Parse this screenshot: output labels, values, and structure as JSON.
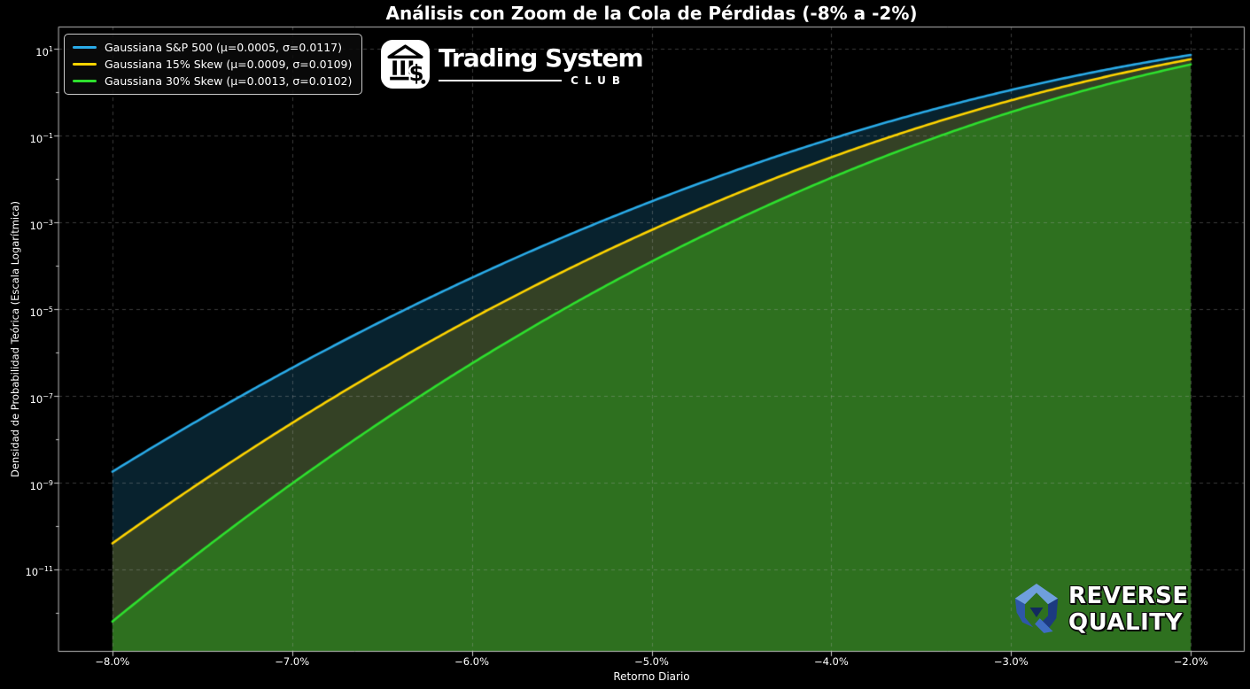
{
  "chart_data": {
    "type": "line",
    "title": "Análisis con Zoom de la Cola de Pérdidas (-8% a -2%)",
    "xlabel": "Retorno Diario",
    "ylabel": "Densidad de Probabilidad Teórica (Escala Logarítmica)",
    "background_color": "#000000",
    "legend_position": "upper left",
    "grid": {
      "style": "dashed",
      "color": "rgba(170,170,170,0.35)"
    },
    "spine_color": "#b9b9b9",
    "tick_color": "#cccccc",
    "x_axis": {
      "unit": "%",
      "ticks": [
        -8,
        -7,
        -6,
        -5,
        -4,
        -3,
        -2
      ],
      "tick_labels": [
        "−8.0%",
        "−7.0%",
        "−6.0%",
        "−5.0%",
        "−4.0%",
        "−3.0%",
        "−2.0%"
      ],
      "range_pct": [
        -8.3,
        -1.7
      ],
      "data_range_pct": [
        -8,
        -2
      ]
    },
    "y_axis": {
      "scale": "log",
      "tick_label_base": "10",
      "major_tick_exponents": [
        1,
        -1,
        -3,
        -5,
        -7,
        -9,
        -11
      ],
      "log_range": [
        1.52,
        -12.9
      ]
    },
    "sample_x_pct": [
      -8.0,
      -7.5,
      -7.0,
      -6.5,
      -6.0,
      -5.5,
      -5.0,
      -4.5,
      -4.0,
      -3.5,
      -3.0,
      -2.5,
      -2.0
    ],
    "series": [
      {
        "name": "Gaussiana S&P 500 (μ=0.0005, σ=0.0117)",
        "mu": 0.0005,
        "sigma": 0.0117,
        "color": "#2aabe8",
        "fill_color": "rgba(42,170,232,0.20)",
        "pdf_samples": [
          1.8e-09,
          3.1e-08,
          4.4e-07,
          5.3e-06,
          5.3e-05,
          0.00044,
          0.00307,
          0.0177,
          0.0853,
          0.342,
          1.14,
          3.17,
          7.35
        ]
      },
      {
        "name": "Gaussiana 15% Skew (μ=0.0009, σ=0.0109)",
        "mu": 0.0009,
        "sigma": 0.0109,
        "color": "#ffd400",
        "fill_color": "rgba(255,212,0,0.18)",
        "pdf_samples": [
          4e-11,
          1.1e-09,
          2.4e-08,
          4.2e-07,
          6.1e-06,
          7e-05,
          0.00067,
          0.00514,
          0.032,
          0.161,
          0.656,
          2.17,
          5.81
        ]
      },
      {
        "name": "Gaussiana 30% Skew (μ=0.0013, σ=0.0102)",
        "mu": 0.0013,
        "sigma": 0.0102,
        "color": "#2ee02e",
        "fill_color": "rgba(40,160,25,0.50)",
        "pdf_samples": [
          6.2e-13,
          2.7e-11,
          9.5e-10,
          2.6e-08,
          5.6e-07,
          9.4e-06,
          0.000126,
          0.0013,
          0.0107,
          0.0693,
          0.352,
          1.4,
          4.41
        ]
      }
    ]
  },
  "branding": {
    "trading_system_club": {
      "name": "Trading System",
      "club": "CLUB"
    },
    "watermark": {
      "line1": "REVERSE",
      "line2": "QUALITY"
    }
  }
}
